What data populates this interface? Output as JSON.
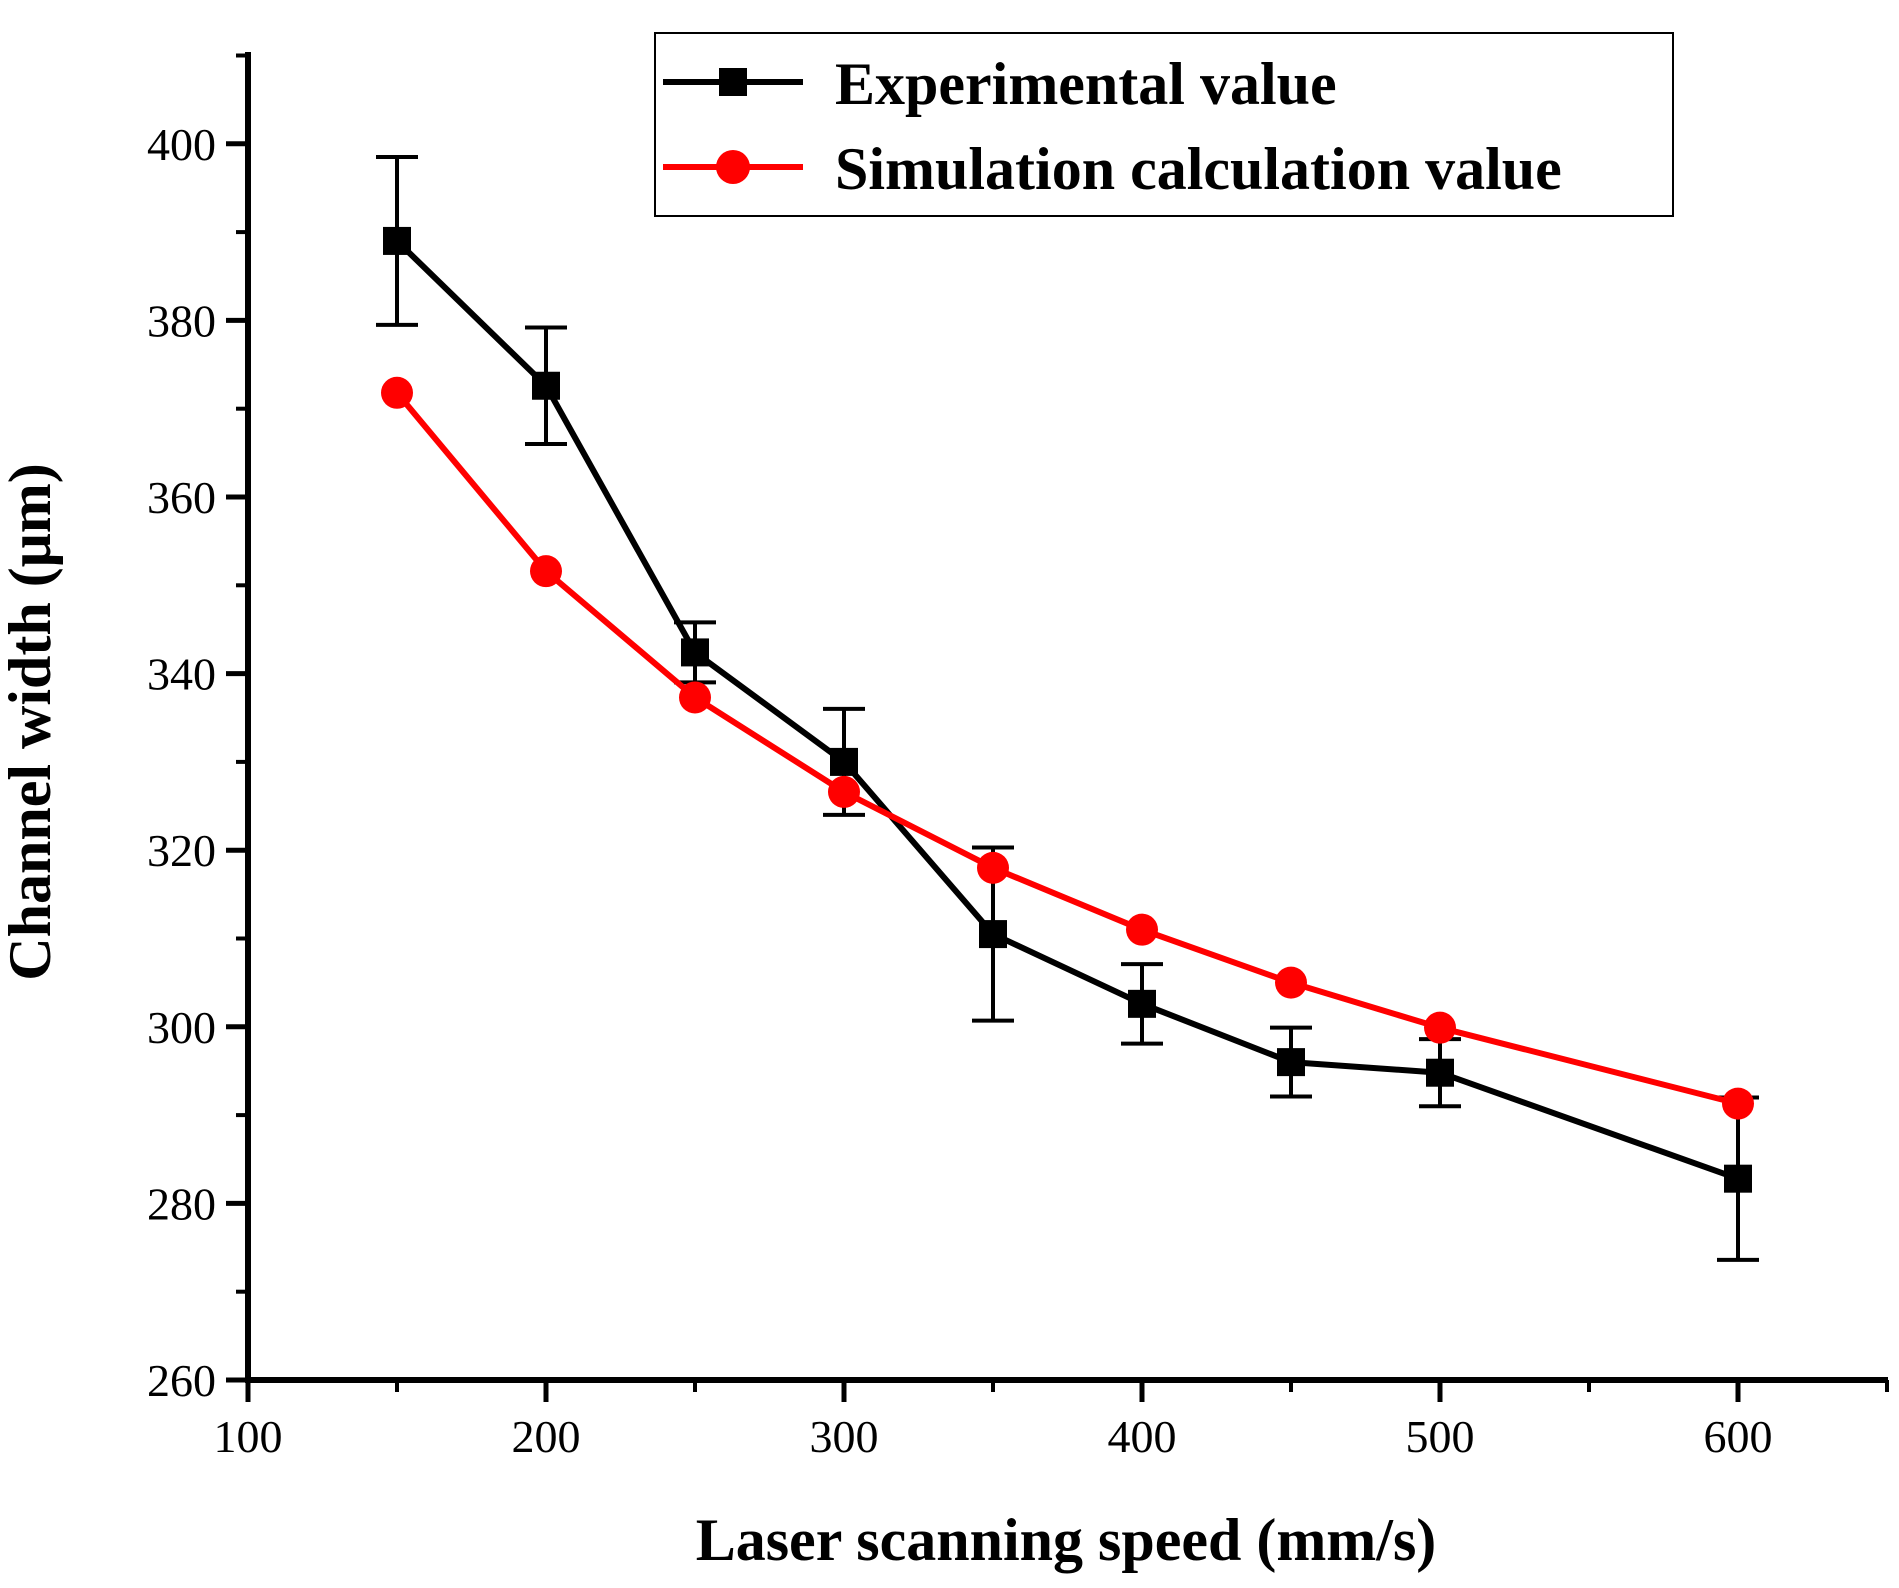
{
  "chart_data": {
    "type": "line",
    "title": "",
    "xlabel": "Laser scanning speed (mm/s)",
    "ylabel": "Channel width (μm)",
    "xlim": [
      100,
      650
    ],
    "ylim": [
      260,
      410
    ],
    "xticks": [
      100,
      200,
      300,
      400,
      500,
      600
    ],
    "yticks": [
      260,
      280,
      300,
      320,
      340,
      360,
      380,
      400
    ],
    "xtick_labels": [
      "100",
      "200",
      "300",
      "400",
      "500",
      "600"
    ],
    "ytick_labels": [
      "260",
      "280",
      "300",
      "320",
      "340",
      "360",
      "380",
      "400"
    ],
    "grid": false,
    "legend_position": "top-right",
    "series": [
      {
        "name": "Experimental value",
        "color": "#000000",
        "marker": "square",
        "x": [
          150,
          200,
          250,
          300,
          350,
          400,
          450,
          500,
          600
        ],
        "y": [
          389,
          372.6,
          342.4,
          330,
          310.5,
          302.6,
          296,
          294.8,
          282.8
        ],
        "error": [
          9.5,
          6.6,
          3.4,
          6,
          9.8,
          4.5,
          3.9,
          3.8,
          9.2
        ]
      },
      {
        "name": "Simulation calculation value",
        "color": "#ff0000",
        "marker": "circle",
        "x": [
          150,
          200,
          250,
          300,
          350,
          400,
          450,
          500,
          600
        ],
        "y": [
          371.8,
          351.6,
          337.3,
          326.6,
          318,
          311,
          305,
          299.9,
          291.3
        ]
      }
    ]
  }
}
